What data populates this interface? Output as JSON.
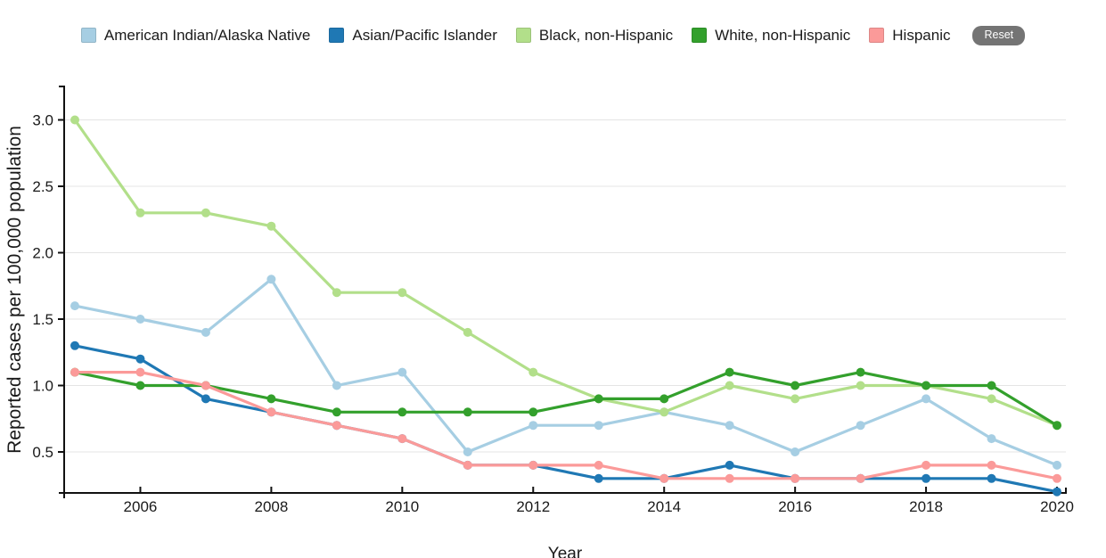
{
  "legend": {
    "items": [
      {
        "name": "american-indian-alaska-native",
        "label": "American Indian/Alaska Native",
        "color": "#a6cee3"
      },
      {
        "name": "asian-pacific-islander",
        "label": "Asian/Pacific Islander",
        "color": "#1f78b4"
      },
      {
        "name": "black-non-hispanic",
        "label": "Black, non-Hispanic",
        "color": "#b2df8a"
      },
      {
        "name": "white-non-hispanic",
        "label": "White, non-Hispanic",
        "color": "#33a02c"
      },
      {
        "name": "hispanic",
        "label": "Hispanic",
        "color": "#fb9a99"
      }
    ],
    "reset_label": "Reset"
  },
  "axes": {
    "x_label": "Year",
    "y_label": "Reported cases per 100,000 population",
    "x_tick_labels": [
      "2006",
      "2008",
      "2010",
      "2012",
      "2014",
      "2016",
      "2018",
      "2020"
    ],
    "y_tick_labels": [
      "0.5",
      "1.0",
      "1.5",
      "2.0",
      "2.5",
      "3.0"
    ]
  },
  "colors": {
    "background": "#ffffff",
    "axis": "#111111",
    "grid": "#e4e4e4",
    "text": "#1a1a1a",
    "reset_bg": "#747474",
    "reset_text": "#ffffff"
  },
  "chart_data": {
    "type": "line",
    "title": "",
    "xlabel": "Year",
    "ylabel": "Reported cases per 100,000 population",
    "x": [
      2005,
      2006,
      2007,
      2008,
      2009,
      2010,
      2011,
      2012,
      2013,
      2014,
      2015,
      2016,
      2017,
      2018,
      2019,
      2020
    ],
    "x_ticks": [
      2006,
      2008,
      2010,
      2012,
      2014,
      2016,
      2018,
      2020
    ],
    "y_ticks": [
      0.5,
      1.0,
      1.5,
      2.0,
      2.5,
      3.0
    ],
    "ylim": [
      0.19,
      3.25
    ],
    "xlim": [
      2004.84,
      2020.14
    ],
    "grid": "horizontal",
    "legend_position": "top",
    "point_markers": true,
    "series": [
      {
        "name": "American Indian/Alaska Native",
        "color": "#a6cee3",
        "values": [
          1.6,
          1.5,
          1.4,
          1.8,
          1.0,
          1.1,
          0.5,
          0.7,
          0.7,
          0.8,
          0.7,
          0.5,
          0.7,
          0.9,
          0.6,
          0.4
        ]
      },
      {
        "name": "Asian/Pacific Islander",
        "color": "#1f78b4",
        "values": [
          1.3,
          1.2,
          0.9,
          0.8,
          0.7,
          0.6,
          0.4,
          0.4,
          0.3,
          0.3,
          0.4,
          0.3,
          0.3,
          0.3,
          0.3,
          0.2
        ]
      },
      {
        "name": "Black, non-Hispanic",
        "color": "#b2df8a",
        "values": [
          3.0,
          2.3,
          2.3,
          2.2,
          1.7,
          1.7,
          1.4,
          1.1,
          0.9,
          0.8,
          1.0,
          0.9,
          1.0,
          1.0,
          0.9,
          0.7
        ]
      },
      {
        "name": "White, non-Hispanic",
        "color": "#33a02c",
        "values": [
          1.1,
          1.0,
          1.0,
          0.9,
          0.8,
          0.8,
          0.8,
          0.8,
          0.9,
          0.9,
          1.1,
          1.0,
          1.1,
          1.0,
          1.0,
          0.7
        ]
      },
      {
        "name": "Hispanic",
        "color": "#fb9a99",
        "values": [
          1.1,
          1.1,
          1.0,
          0.8,
          0.7,
          0.6,
          0.4,
          0.4,
          0.4,
          0.3,
          0.3,
          0.3,
          0.3,
          0.4,
          0.4,
          0.3
        ]
      }
    ]
  }
}
